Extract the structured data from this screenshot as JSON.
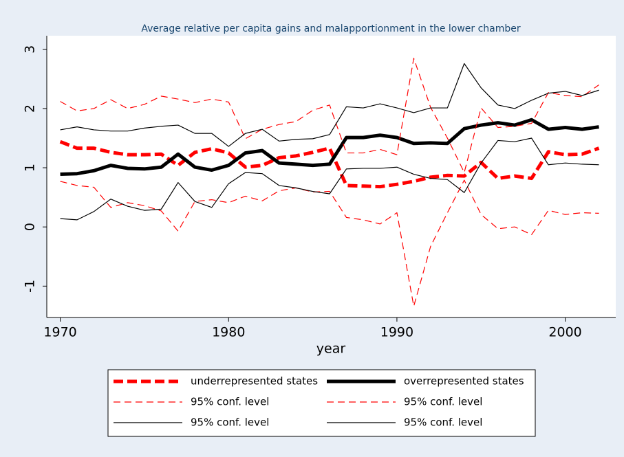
{
  "chart_data": {
    "type": "line",
    "title": "Average relative per capita gains and malapportionment in the lower chamber",
    "x_label": "year",
    "x": [
      1970,
      1971,
      1972,
      1973,
      1974,
      1975,
      1976,
      1977,
      1978,
      1979,
      1980,
      1981,
      1982,
      1983,
      1984,
      1985,
      1986,
      1987,
      1988,
      1989,
      1990,
      1991,
      1992,
      1993,
      1994,
      1995,
      1996,
      1997,
      1998,
      1999,
      2000,
      2001,
      2002
    ],
    "xlim": [
      1969.2,
      2003
    ],
    "xticks": [
      1970,
      1980,
      1990,
      2000
    ],
    "ylim": [
      -1.53,
      3.23
    ],
    "yticks": [
      -1,
      0,
      1,
      2,
      3
    ],
    "series": [
      {
        "name": "underrepresented states",
        "color": "#ff0000",
        "style": "dashed",
        "weight": "thick",
        "values": [
          1.44,
          1.33,
          1.33,
          1.26,
          1.22,
          1.22,
          1.23,
          1.04,
          1.26,
          1.32,
          1.25,
          1.01,
          1.04,
          1.17,
          1.2,
          1.26,
          1.33,
          0.7,
          0.69,
          0.68,
          0.72,
          0.77,
          0.84,
          0.87,
          0.86,
          1.09,
          0.82,
          0.86,
          0.82,
          1.27,
          1.22,
          1.23,
          1.33
        ]
      },
      {
        "name": "overrepresented states",
        "color": "#000000",
        "style": "solid",
        "weight": "thick",
        "values": [
          0.89,
          0.9,
          0.95,
          1.04,
          0.99,
          0.98,
          1.01,
          1.23,
          1.01,
          0.96,
          1.04,
          1.25,
          1.29,
          1.08,
          1.06,
          1.04,
          1.06,
          1.51,
          1.51,
          1.55,
          1.51,
          1.41,
          1.42,
          1.41,
          1.66,
          1.72,
          1.76,
          1.72,
          1.81,
          1.65,
          1.68,
          1.65,
          1.69
        ]
      },
      {
        "name": "95% conf. level",
        "color": "#ff0000",
        "style": "dashed",
        "weight": "thin",
        "values": [
          2.12,
          1.96,
          2.0,
          2.15,
          2.0,
          2.07,
          2.21,
          2.16,
          2.1,
          2.16,
          2.11,
          1.49,
          1.65,
          1.73,
          1.78,
          1.97,
          2.06,
          1.25,
          1.25,
          1.31,
          1.22,
          2.85,
          2.02,
          1.5,
          0.92,
          2.01,
          1.68,
          1.7,
          1.75,
          2.27,
          2.22,
          2.2,
          2.4
        ]
      },
      {
        "name": "95% conf. level",
        "color": "#ff0000",
        "style": "dashed",
        "weight": "thin",
        "values": [
          0.77,
          0.7,
          0.67,
          0.33,
          0.41,
          0.36,
          0.27,
          -0.07,
          0.43,
          0.46,
          0.41,
          0.52,
          0.44,
          0.61,
          0.66,
          0.59,
          0.6,
          0.16,
          0.12,
          0.05,
          0.24,
          -1.34,
          -0.33,
          0.24,
          0.79,
          0.21,
          -0.03,
          0.0,
          -0.13,
          0.28,
          0.21,
          0.24,
          0.23
        ]
      },
      {
        "name": "95% conf. level",
        "color": "#000000",
        "style": "solid",
        "weight": "thin",
        "values": [
          1.64,
          1.69,
          1.64,
          1.62,
          1.62,
          1.67,
          1.7,
          1.72,
          1.58,
          1.58,
          1.36,
          1.58,
          1.65,
          1.45,
          1.48,
          1.49,
          1.56,
          2.03,
          2.01,
          2.08,
          2.01,
          1.93,
          2.01,
          2.01,
          2.76,
          2.35,
          2.06,
          2.0,
          2.14,
          2.26,
          2.29,
          2.22,
          2.31
        ]
      },
      {
        "name": "95% conf. level",
        "color": "#000000",
        "style": "solid",
        "weight": "thin",
        "values": [
          0.14,
          0.12,
          0.26,
          0.47,
          0.35,
          0.28,
          0.3,
          0.75,
          0.43,
          0.33,
          0.73,
          0.92,
          0.9,
          0.7,
          0.66,
          0.6,
          0.56,
          0.98,
          0.99,
          0.99,
          1.01,
          0.89,
          0.82,
          0.8,
          0.58,
          1.08,
          1.46,
          1.44,
          1.5,
          1.05,
          1.08,
          1.06,
          1.05
        ]
      }
    ]
  }
}
